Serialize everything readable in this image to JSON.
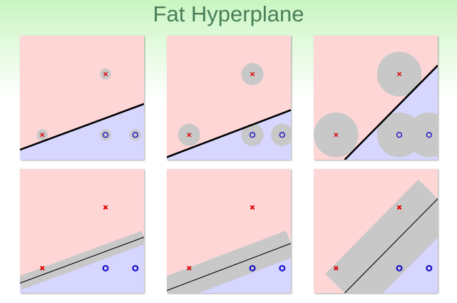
{
  "title": "Fat Hyperplane",
  "colors": {
    "positive_region": "#ffd6d6",
    "negative_region": "#d6d6ff",
    "margin": "#c8c8c8",
    "x_marker": "#dd0000",
    "o_marker": "#1a10c8",
    "separator": "#000000"
  },
  "points": [
    {
      "label": "x",
      "x": 0.18,
      "y": 0.2
    },
    {
      "label": "x",
      "x": 0.69,
      "y": 0.69
    },
    {
      "label": "o",
      "x": 0.69,
      "y": 0.2
    },
    {
      "label": "o",
      "x": 0.93,
      "y": 0.2
    }
  ],
  "panels": [
    {
      "row": 0,
      "col": 0,
      "line": [
        0.0,
        0.08,
        1.0,
        0.45
      ],
      "width": 0.0,
      "radius": 0.045,
      "thick": true
    },
    {
      "row": 0,
      "col": 1,
      "line": [
        0.0,
        0.02,
        1.0,
        0.4
      ],
      "width": 0.0,
      "radius": 0.09,
      "thick": true
    },
    {
      "row": 0,
      "col": 2,
      "line": [
        0.25,
        0.0,
        1.0,
        0.76
      ],
      "width": 0.0,
      "radius": 0.18,
      "thick": true
    },
    {
      "row": 1,
      "col": 0,
      "line": [
        0.0,
        0.08,
        1.0,
        0.45
      ],
      "width": 0.055,
      "radius": 0.0,
      "thick": false
    },
    {
      "row": 1,
      "col": 1,
      "line": [
        0.0,
        0.02,
        1.0,
        0.4
      ],
      "width": 0.11,
      "radius": 0.0,
      "thick": false
    },
    {
      "row": 1,
      "col": 2,
      "line": [
        0.25,
        0.0,
        1.0,
        0.76
      ],
      "width": 0.22,
      "radius": 0.0,
      "thick": false
    }
  ]
}
